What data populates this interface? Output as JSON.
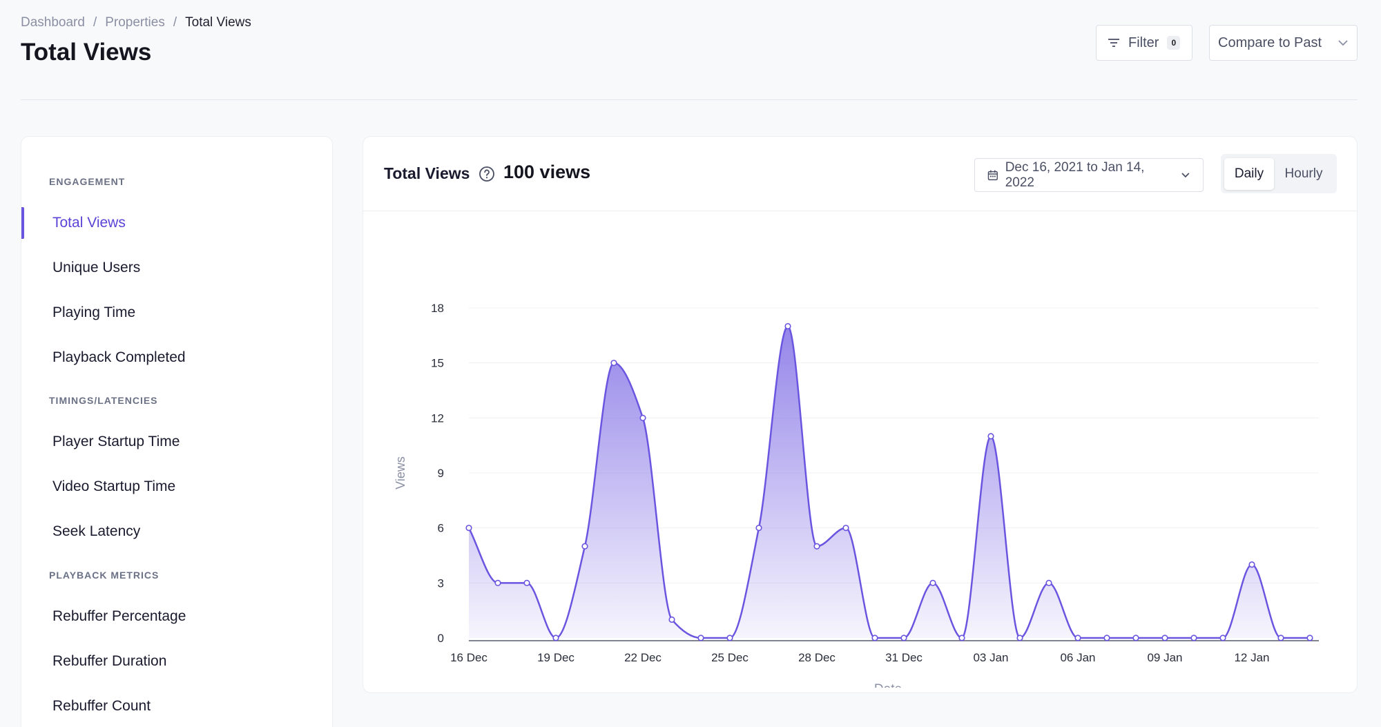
{
  "breadcrumb": {
    "items": [
      "Dashboard",
      "Properties"
    ],
    "current": "Total Views"
  },
  "page_title": "Total Views",
  "header": {
    "filter_label": "Filter",
    "filter_count": "0",
    "compare_label": "Compare to Past"
  },
  "sidebar": {
    "sections": [
      {
        "title": "ENGAGEMENT",
        "items": [
          "Total Views",
          "Unique Users",
          "Playing Time",
          "Playback Completed"
        ]
      },
      {
        "title": "TIMINGS/LATENCIES",
        "items": [
          "Player Startup Time",
          "Video Startup Time",
          "Seek Latency"
        ]
      },
      {
        "title": "PLAYBACK METRICS",
        "items": [
          "Rebuffer Percentage",
          "Rebuffer Duration",
          "Rebuffer Count"
        ]
      }
    ],
    "active": "Total Views"
  },
  "card": {
    "title": "Total Views",
    "total": "100 views",
    "date_range": "Dec 16, 2021 to Jan 14, 2022",
    "toggle": {
      "daily": "Daily",
      "hourly": "Hourly",
      "selected": "Daily"
    }
  },
  "colors": {
    "accent": "#6a55e0",
    "fill_top": "#8f7fe8",
    "text": "#1a1a2e"
  },
  "chart_data": {
    "type": "area",
    "xlabel": "Date",
    "ylabel": "Views",
    "ylim": [
      0,
      18
    ],
    "yticks": [
      0,
      3,
      6,
      9,
      12,
      15,
      18
    ],
    "xtick_labels": [
      "16 Dec",
      "19 Dec",
      "22 Dec",
      "25 Dec",
      "28 Dec",
      "31 Dec",
      "03 Jan",
      "06 Jan",
      "09 Jan",
      "12 Jan"
    ],
    "x": [
      "16 Dec",
      "17 Dec",
      "18 Dec",
      "19 Dec",
      "20 Dec",
      "21 Dec",
      "22 Dec",
      "23 Dec",
      "24 Dec",
      "25 Dec",
      "26 Dec",
      "27 Dec",
      "28 Dec",
      "29 Dec",
      "30 Dec",
      "31 Dec",
      "01 Jan",
      "02 Jan",
      "03 Jan",
      "04 Jan",
      "05 Jan",
      "06 Jan",
      "07 Jan",
      "08 Jan",
      "09 Jan",
      "10 Jan",
      "11 Jan",
      "12 Jan",
      "13 Jan",
      "14 Jan"
    ],
    "values": [
      6,
      3,
      3,
      0,
      5,
      15,
      12,
      1,
      0,
      0,
      6,
      17,
      5,
      6,
      0,
      0,
      3,
      0,
      11,
      0,
      3,
      0,
      0,
      0,
      0,
      0,
      0,
      4,
      0,
      0
    ],
    "grid": true
  }
}
